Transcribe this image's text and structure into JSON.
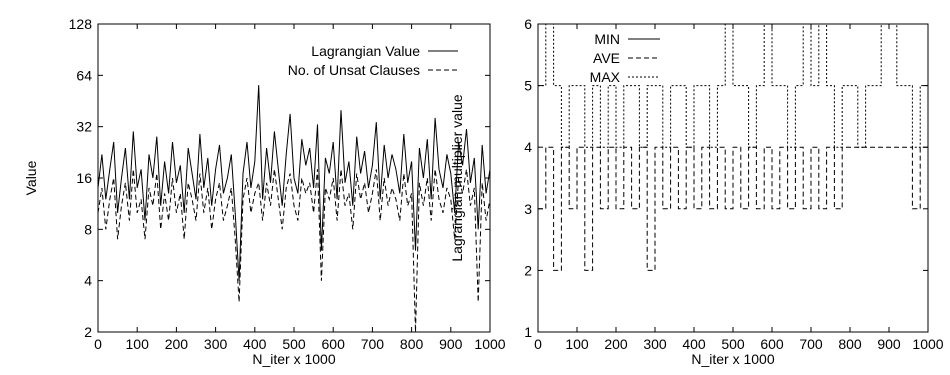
{
  "chart_data": [
    {
      "type": "line",
      "title": "",
      "xlabel": "N_iter x 1000",
      "ylabel": "Value",
      "xlim": [
        0,
        1000
      ],
      "ylim": [
        2,
        128
      ],
      "yscale": "log2",
      "xticks": [
        "0",
        "100",
        "200",
        "300",
        "400",
        "500",
        "600",
        "700",
        "800",
        "900",
        "1000"
      ],
      "yticks": [
        "2",
        "4",
        "8",
        "16",
        "32",
        "64",
        "128"
      ],
      "legend_position": "top-right",
      "grid": false,
      "series": [
        {
          "name": "Lagrangian Value",
          "style": "solid",
          "x": [
            0,
            10,
            20,
            30,
            40,
            50,
            60,
            70,
            80,
            90,
            100,
            110,
            120,
            130,
            140,
            150,
            160,
            170,
            180,
            190,
            200,
            210,
            220,
            230,
            240,
            250,
            260,
            270,
            280,
            290,
            300,
            310,
            320,
            330,
            340,
            350,
            360,
            370,
            380,
            390,
            400,
            410,
            420,
            430,
            440,
            450,
            460,
            470,
            480,
            490,
            500,
            510,
            520,
            530,
            540,
            550,
            560,
            570,
            580,
            590,
            600,
            610,
            620,
            630,
            640,
            650,
            660,
            670,
            680,
            690,
            700,
            710,
            720,
            730,
            740,
            750,
            760,
            770,
            780,
            790,
            800,
            810,
            820,
            830,
            840,
            850,
            860,
            870,
            880,
            890,
            900,
            910,
            920,
            930,
            940,
            950,
            960,
            970,
            980,
            990,
            1000
          ],
          "values": [
            14,
            22,
            12,
            18,
            26,
            10,
            16,
            24,
            12,
            30,
            14,
            18,
            9,
            22,
            16,
            28,
            11,
            20,
            13,
            26,
            15,
            19,
            10,
            24,
            17,
            12,
            29,
            14,
            21,
            11,
            18,
            25,
            13,
            16,
            22,
            10,
            4,
            17,
            26,
            14,
            20,
            56,
            12,
            24,
            15,
            30,
            18,
            11,
            22,
            38,
            16,
            13,
            27,
            19,
            24,
            14,
            33,
            6,
            21,
            17,
            26,
            12,
            40,
            15,
            20,
            11,
            28,
            17,
            23,
            14,
            19,
            34,
            12,
            25,
            16,
            22,
            18,
            13,
            29,
            15,
            20,
            6,
            24,
            16,
            27,
            12,
            36,
            18,
            14,
            22,
            17,
            10,
            26,
            19,
            31,
            15,
            21,
            8,
            25,
            13,
            18
          ]
        },
        {
          "name": "No. of Unsat Clauses",
          "style": "dashed",
          "x": [
            0,
            10,
            20,
            30,
            40,
            50,
            60,
            70,
            80,
            90,
            100,
            110,
            120,
            130,
            140,
            150,
            160,
            170,
            180,
            190,
            200,
            210,
            220,
            230,
            240,
            250,
            260,
            270,
            280,
            290,
            300,
            310,
            320,
            330,
            340,
            350,
            360,
            370,
            380,
            390,
            400,
            410,
            420,
            430,
            440,
            450,
            460,
            470,
            480,
            490,
            500,
            510,
            520,
            530,
            540,
            550,
            560,
            570,
            580,
            590,
            600,
            610,
            620,
            630,
            640,
            650,
            660,
            670,
            680,
            690,
            700,
            710,
            720,
            730,
            740,
            750,
            760,
            770,
            780,
            790,
            800,
            810,
            820,
            830,
            840,
            850,
            860,
            870,
            880,
            890,
            900,
            910,
            920,
            930,
            940,
            950,
            960,
            970,
            980,
            990,
            1000
          ],
          "values": [
            10,
            14,
            8,
            12,
            16,
            7,
            11,
            15,
            9,
            18,
            10,
            12,
            7,
            14,
            11,
            17,
            8,
            13,
            9,
            16,
            10,
            13,
            7,
            15,
            12,
            9,
            17,
            10,
            14,
            8,
            12,
            15,
            9,
            11,
            14,
            7,
            3,
            12,
            16,
            10,
            13,
            15,
            9,
            15,
            11,
            18,
            12,
            8,
            14,
            17,
            11,
            9,
            16,
            13,
            15,
            10,
            18,
            4,
            14,
            12,
            16,
            9,
            18,
            11,
            13,
            8,
            17,
            12,
            15,
            10,
            13,
            18,
            9,
            16,
            11,
            14,
            12,
            9,
            17,
            11,
            13,
            2,
            15,
            11,
            16,
            9,
            18,
            12,
            10,
            14,
            12,
            7,
            16,
            13,
            18,
            11,
            14,
            3,
            15,
            9,
            12
          ]
        }
      ]
    },
    {
      "type": "line",
      "title": "",
      "xlabel": "N_iter x 1000",
      "ylabel": "Lagrangian multiplier value",
      "xlim": [
        0,
        1000
      ],
      "ylim": [
        1,
        6
      ],
      "xticks": [
        "0",
        "100",
        "200",
        "300",
        "400",
        "500",
        "600",
        "700",
        "800",
        "900",
        "1000"
      ],
      "yticks": [
        "1",
        "2",
        "3",
        "4",
        "5",
        "6"
      ],
      "legend_position": "top-left",
      "grid": false,
      "series": [
        {
          "name": "MIN",
          "style": "solid",
          "x": [
            0,
            100,
            200,
            300,
            400,
            500,
            600,
            700,
            800,
            900,
            1000
          ],
          "values": [
            1,
            1,
            1,
            1,
            1,
            1,
            1,
            1,
            1,
            1,
            1
          ]
        },
        {
          "name": "AVE",
          "style": "dashed",
          "x": [
            0,
            20,
            40,
            60,
            80,
            100,
            120,
            140,
            160,
            180,
            200,
            220,
            240,
            260,
            280,
            300,
            320,
            340,
            360,
            380,
            400,
            420,
            440,
            460,
            480,
            500,
            520,
            540,
            560,
            580,
            600,
            620,
            640,
            660,
            680,
            700,
            720,
            740,
            760,
            780,
            800,
            820,
            840,
            860,
            880,
            900,
            920,
            940,
            960,
            980,
            1000
          ],
          "values": [
            3,
            4,
            2,
            4,
            3,
            4,
            2,
            4,
            3,
            4,
            3,
            4,
            3,
            4,
            2,
            4,
            3,
            4,
            3,
            4,
            3,
            4,
            3,
            4,
            3,
            4,
            3,
            4,
            3,
            4,
            3,
            4,
            3,
            4,
            3,
            4,
            3,
            4,
            3,
            4,
            4,
            4,
            4,
            4,
            4,
            4,
            4,
            4,
            3,
            4,
            4
          ]
        },
        {
          "name": "MAX",
          "style": "dotted",
          "x": [
            0,
            20,
            40,
            60,
            80,
            100,
            120,
            140,
            160,
            180,
            200,
            220,
            240,
            260,
            280,
            300,
            320,
            340,
            360,
            380,
            400,
            420,
            440,
            460,
            480,
            500,
            520,
            540,
            560,
            580,
            600,
            620,
            640,
            660,
            680,
            700,
            720,
            740,
            760,
            780,
            800,
            820,
            840,
            860,
            880,
            900,
            920,
            940,
            960,
            980,
            1000
          ],
          "values": [
            5,
            6,
            5,
            4,
            5,
            5,
            4,
            5,
            4,
            5,
            4,
            5,
            5,
            4,
            5,
            5,
            4,
            5,
            5,
            4,
            5,
            5,
            4,
            5,
            6,
            5,
            5,
            4,
            5,
            6,
            5,
            5,
            4,
            5,
            6,
            5,
            6,
            5,
            4,
            5,
            5,
            4,
            5,
            5,
            6,
            6,
            5,
            5,
            4,
            5,
            5
          ]
        }
      ]
    }
  ]
}
